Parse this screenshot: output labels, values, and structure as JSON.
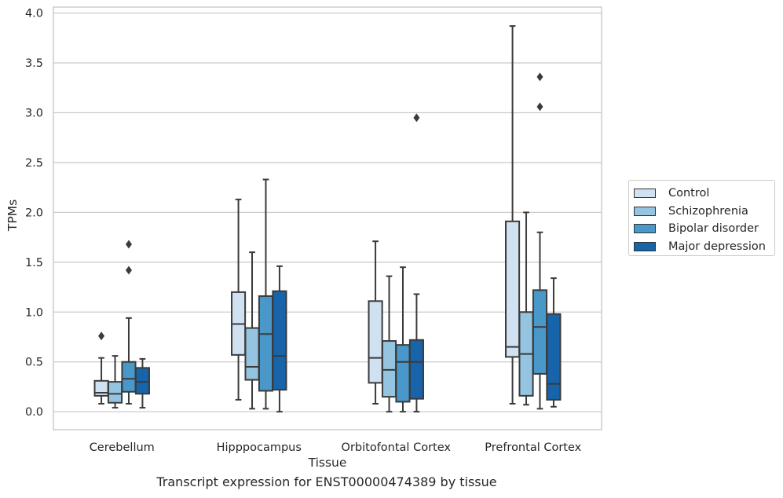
{
  "caption": "Transcript expression for ENST00000474389 by tissue",
  "chart_data": {
    "type": "boxplot",
    "xlabel": "Tissue",
    "ylabel": "TPMs",
    "ylim": [
      -0.18,
      4.06
    ],
    "yticks": [
      0.0,
      0.5,
      1.0,
      1.5,
      2.0,
      2.5,
      3.0,
      3.5,
      4.0
    ],
    "ytick_labels": [
      "0.0",
      "0.5",
      "1.0",
      "1.5",
      "2.0",
      "2.5",
      "3.0",
      "3.5",
      "4.0"
    ],
    "grid": "horizontal",
    "legend_position": "right",
    "categories": [
      "Cerebellum",
      "Hipppocampus",
      "Orbitofontal Cortex",
      "Prefrontal Cortex"
    ],
    "series": [
      {
        "name": "Control",
        "color": "#d0e1f2",
        "boxes": [
          {
            "whislo": 0.08,
            "q1": 0.16,
            "med": 0.19,
            "q3": 0.31,
            "whishi": 0.54,
            "fliers": [
              0.76
            ]
          },
          {
            "whislo": 0.12,
            "q1": 0.57,
            "med": 0.88,
            "q3": 1.2,
            "whishi": 2.13,
            "fliers": []
          },
          {
            "whislo": 0.08,
            "q1": 0.29,
            "med": 0.54,
            "q3": 1.11,
            "whishi": 1.71,
            "fliers": []
          },
          {
            "whislo": 0.08,
            "q1": 0.55,
            "med": 0.65,
            "q3": 1.91,
            "whishi": 3.87,
            "fliers": []
          }
        ]
      },
      {
        "name": "Schizophrenia",
        "color": "#94c4df",
        "boxes": [
          {
            "whislo": 0.04,
            "q1": 0.09,
            "med": 0.18,
            "q3": 0.3,
            "whishi": 0.56,
            "fliers": []
          },
          {
            "whislo": 0.03,
            "q1": 0.32,
            "med": 0.45,
            "q3": 0.84,
            "whishi": 1.6,
            "fliers": []
          },
          {
            "whislo": 0.0,
            "q1": 0.15,
            "med": 0.42,
            "q3": 0.71,
            "whishi": 1.36,
            "fliers": []
          },
          {
            "whislo": 0.07,
            "q1": 0.16,
            "med": 0.58,
            "q3": 1.0,
            "whishi": 2.0,
            "fliers": []
          }
        ]
      },
      {
        "name": "Bipolar disorder",
        "color": "#4a98c9",
        "boxes": [
          {
            "whislo": 0.08,
            "q1": 0.2,
            "med": 0.33,
            "q3": 0.5,
            "whishi": 0.94,
            "fliers": [
              1.42,
              1.68
            ]
          },
          {
            "whislo": 0.03,
            "q1": 0.21,
            "med": 0.78,
            "q3": 1.16,
            "whishi": 2.33,
            "fliers": []
          },
          {
            "whislo": 0.0,
            "q1": 0.1,
            "med": 0.5,
            "q3": 0.67,
            "whishi": 1.45,
            "fliers": []
          },
          {
            "whislo": 0.03,
            "q1": 0.38,
            "med": 0.85,
            "q3": 1.22,
            "whishi": 1.8,
            "fliers": [
              3.06,
              3.36
            ]
          }
        ]
      },
      {
        "name": "Major depression",
        "color": "#1764ab",
        "boxes": [
          {
            "whislo": 0.04,
            "q1": 0.18,
            "med": 0.3,
            "q3": 0.44,
            "whishi": 0.53,
            "fliers": []
          },
          {
            "whislo": 0.0,
            "q1": 0.22,
            "med": 0.56,
            "q3": 1.21,
            "whishi": 1.46,
            "fliers": []
          },
          {
            "whislo": 0.0,
            "q1": 0.13,
            "med": 0.5,
            "q3": 0.72,
            "whishi": 1.18,
            "fliers": [
              2.95
            ]
          },
          {
            "whislo": 0.05,
            "q1": 0.12,
            "med": 0.28,
            "q3": 0.98,
            "whishi": 1.34,
            "fliers": []
          }
        ]
      }
    ]
  }
}
